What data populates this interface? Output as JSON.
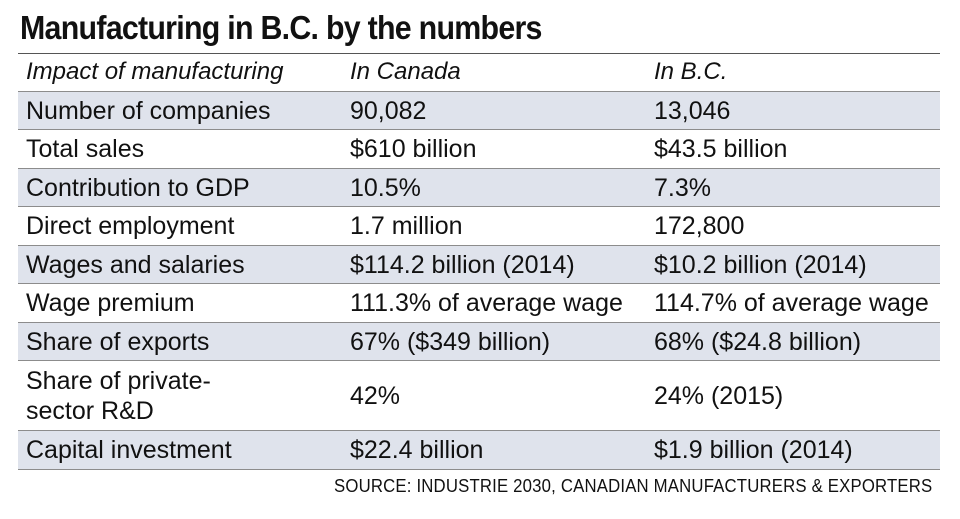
{
  "title": "Manufacturing in B.C. by the numbers",
  "header": {
    "col1": "Impact of manufacturing",
    "col2": "In Canada",
    "col3": "In B.C."
  },
  "rows": [
    {
      "label": "Number of companies",
      "canada": "90,082",
      "bc": "13,046"
    },
    {
      "label": "Total sales",
      "canada": "$610 billion",
      "bc": "$43.5 billion"
    },
    {
      "label": "Contribution to GDP",
      "canada": "10.5%",
      "bc": "7.3%"
    },
    {
      "label": "Direct employment",
      "canada": "1.7 million",
      "bc": "172,800"
    },
    {
      "label": "Wages and salaries",
      "canada": "$114.2 billion (2014)",
      "bc": "$10.2 billion (2014)"
    },
    {
      "label": "Wage premium",
      "canada": "111.3% of average wage",
      "bc": "114.7% of average wage"
    },
    {
      "label": "Share of exports",
      "canada": "67% ($349 billion)",
      "bc": "68% ($24.8 billion)"
    },
    {
      "label": "Share of private-sector R&D",
      "canada": "42%",
      "bc": "24% (2015)"
    },
    {
      "label": "Capital investment",
      "canada": "$22.4 billion",
      "bc": "$1.9 billion (2014)"
    }
  ],
  "source": "SOURCE: INDUSTRIE 2030, CANADIAN MANUFACTURERS & EXPORTERS",
  "colors": {
    "alt_row": "#dfe3ec",
    "text": "#111111"
  }
}
